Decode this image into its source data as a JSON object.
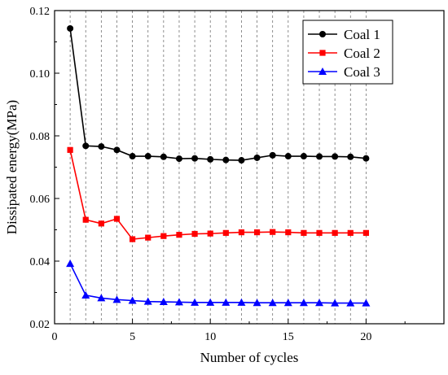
{
  "chart_data": {
    "type": "line",
    "xlabel": "Number of cycles",
    "ylabel": "Dissipated energy(MPa)",
    "xlim": [
      0,
      25
    ],
    "ylim": [
      0.02,
      0.12
    ],
    "xticks": [
      0,
      5,
      10,
      15,
      20
    ],
    "yticks": [
      0.02,
      0.04,
      0.06,
      0.08,
      0.1,
      0.12
    ],
    "xtick_labels": [
      "0",
      "5",
      "10",
      "15",
      "20"
    ],
    "ytick_labels": [
      "0.02",
      "0.04",
      "0.06",
      "0.08",
      "0.10",
      "0.12"
    ],
    "grid": "vertical dashed lines at each cycle 1–20",
    "legend_position": "top-right",
    "x": [
      1,
      2,
      3,
      4,
      5,
      6,
      7,
      8,
      9,
      10,
      11,
      12,
      13,
      14,
      15,
      16,
      17,
      18,
      19,
      20
    ],
    "series": [
      {
        "name": "Coal 1",
        "color": "#000000",
        "marker": "circle",
        "values": [
          0.1143,
          0.0768,
          0.0766,
          0.0755,
          0.0735,
          0.0735,
          0.0733,
          0.0727,
          0.0728,
          0.0725,
          0.0723,
          0.0722,
          0.073,
          0.0738,
          0.0735,
          0.0735,
          0.0734,
          0.0734,
          0.0733,
          0.0728
        ]
      },
      {
        "name": "Coal 2",
        "color": "#ff0000",
        "marker": "square",
        "values": [
          0.0755,
          0.0532,
          0.052,
          0.0535,
          0.047,
          0.0475,
          0.048,
          0.0484,
          0.0487,
          0.0488,
          0.049,
          0.0492,
          0.0492,
          0.0493,
          0.0492,
          0.049,
          0.049,
          0.049,
          0.049,
          0.049
        ]
      },
      {
        "name": "Coal 3",
        "color": "#0000ff",
        "marker": "triangle",
        "values": [
          0.0392,
          0.0291,
          0.0282,
          0.0277,
          0.0274,
          0.0271,
          0.027,
          0.0269,
          0.0268,
          0.0268,
          0.0268,
          0.0268,
          0.0267,
          0.0267,
          0.0267,
          0.0267,
          0.0267,
          0.0266,
          0.0266,
          0.0266
        ]
      }
    ]
  }
}
